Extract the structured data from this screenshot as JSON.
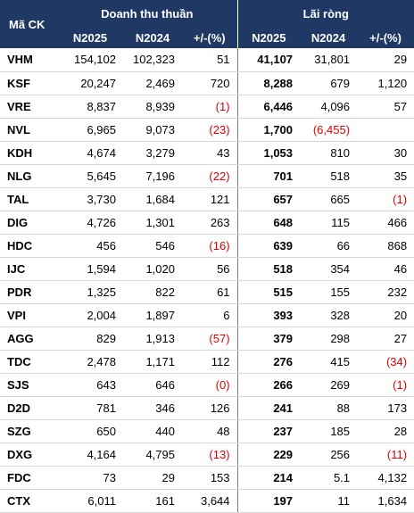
{
  "header": {
    "code_label": "Mã CK",
    "group_revenue": "Doanh thu thuần",
    "group_profit": "Lãi ròng",
    "sub": [
      "N2025",
      "N2024",
      "+/-(%)",
      "N2025",
      "N2024",
      "+/-(%)"
    ]
  },
  "colors": {
    "header_bg": "#1f3864",
    "negative": "#e00000"
  },
  "rows": [
    {
      "code": "VHM",
      "rev_2025": "154,102",
      "rev_2024": "102,323",
      "rev_chg": "51",
      "np_2025": "41,107",
      "np_2024": "31,801",
      "np_chg": "29"
    },
    {
      "code": "KSF",
      "rev_2025": "20,247",
      "rev_2024": "2,469",
      "rev_chg": "720",
      "np_2025": "8,288",
      "np_2024": "679",
      "np_chg": "1,120"
    },
    {
      "code": "VRE",
      "rev_2025": "8,837",
      "rev_2024": "8,939",
      "rev_chg": "(1)",
      "np_2025": "6,446",
      "np_2024": "4,096",
      "np_chg": "57"
    },
    {
      "code": "NVL",
      "rev_2025": "6,965",
      "rev_2024": "9,073",
      "rev_chg": "(23)",
      "np_2025": "1,700",
      "np_2024": "(6,455)",
      "np_chg": ""
    },
    {
      "code": "KDH",
      "rev_2025": "4,674",
      "rev_2024": "3,279",
      "rev_chg": "43",
      "np_2025": "1,053",
      "np_2024": "810",
      "np_chg": "30"
    },
    {
      "code": "NLG",
      "rev_2025": "5,645",
      "rev_2024": "7,196",
      "rev_chg": "(22)",
      "np_2025": "701",
      "np_2024": "518",
      "np_chg": "35"
    },
    {
      "code": "TAL",
      "rev_2025": "3,730",
      "rev_2024": "1,684",
      "rev_chg": "121",
      "np_2025": "657",
      "np_2024": "665",
      "np_chg": "(1)"
    },
    {
      "code": "DIG",
      "rev_2025": "4,726",
      "rev_2024": "1,301",
      "rev_chg": "263",
      "np_2025": "648",
      "np_2024": "115",
      "np_chg": "466"
    },
    {
      "code": "HDC",
      "rev_2025": "456",
      "rev_2024": "546",
      "rev_chg": "(16)",
      "np_2025": "639",
      "np_2024": "66",
      "np_chg": "868"
    },
    {
      "code": "IJC",
      "rev_2025": "1,594",
      "rev_2024": "1,020",
      "rev_chg": "56",
      "np_2025": "518",
      "np_2024": "354",
      "np_chg": "46"
    },
    {
      "code": "PDR",
      "rev_2025": "1,325",
      "rev_2024": "822",
      "rev_chg": "61",
      "np_2025": "515",
      "np_2024": "155",
      "np_chg": "232"
    },
    {
      "code": "VPI",
      "rev_2025": "2,004",
      "rev_2024": "1,897",
      "rev_chg": "6",
      "np_2025": "393",
      "np_2024": "328",
      "np_chg": "20"
    },
    {
      "code": "AGG",
      "rev_2025": "829",
      "rev_2024": "1,913",
      "rev_chg": "(57)",
      "np_2025": "379",
      "np_2024": "298",
      "np_chg": "27"
    },
    {
      "code": "TDC",
      "rev_2025": "2,478",
      "rev_2024": "1,171",
      "rev_chg": "112",
      "np_2025": "276",
      "np_2024": "415",
      "np_chg": "(34)"
    },
    {
      "code": "SJS",
      "rev_2025": "643",
      "rev_2024": "646",
      "rev_chg": "(0)",
      "np_2025": "266",
      "np_2024": "269",
      "np_chg": "(1)"
    },
    {
      "code": "D2D",
      "rev_2025": "781",
      "rev_2024": "346",
      "rev_chg": "126",
      "np_2025": "241",
      "np_2024": "88",
      "np_chg": "173"
    },
    {
      "code": "SZG",
      "rev_2025": "650",
      "rev_2024": "440",
      "rev_chg": "48",
      "np_2025": "237",
      "np_2024": "185",
      "np_chg": "28"
    },
    {
      "code": "DXG",
      "rev_2025": "4,164",
      "rev_2024": "4,795",
      "rev_chg": "(13)",
      "np_2025": "229",
      "np_2024": "256",
      "np_chg": "(11)"
    },
    {
      "code": "FDC",
      "rev_2025": "73",
      "rev_2024": "29",
      "rev_chg": "153",
      "np_2025": "214",
      "np_2024": "5.1",
      "np_chg": "4,132"
    },
    {
      "code": "CTX",
      "rev_2025": "6,011",
      "rev_2024": "161",
      "rev_chg": "3,644",
      "np_2025": "197",
      "np_2024": "11",
      "np_chg": "1,634"
    }
  ]
}
